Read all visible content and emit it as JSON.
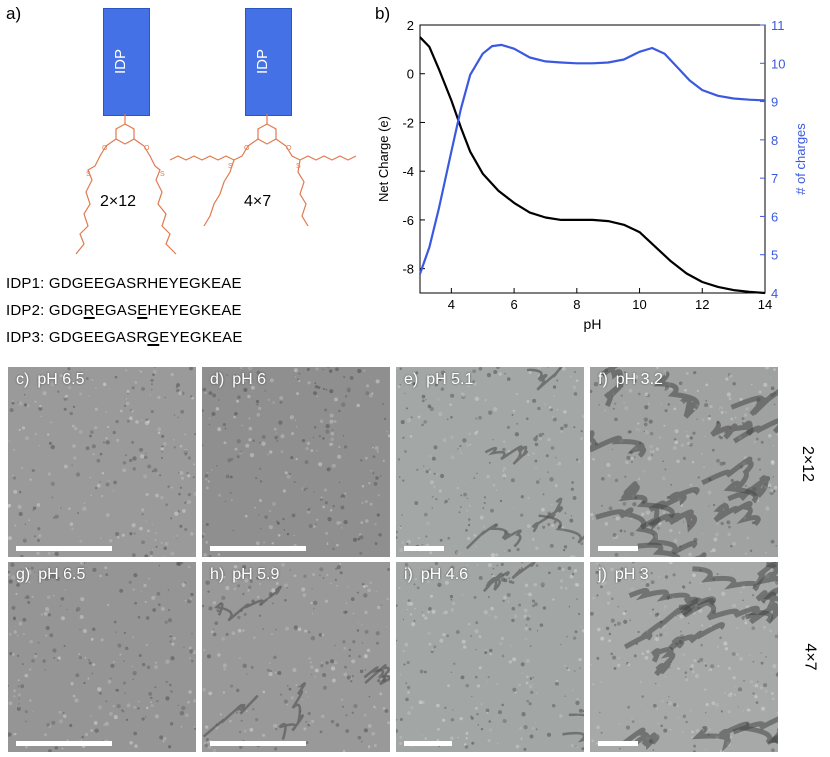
{
  "panel_a": {
    "letter": "a)",
    "molecules": [
      {
        "box_label": "IDP",
        "tail_label": "2×12"
      },
      {
        "box_label": "IDP",
        "tail_label": "4×7"
      }
    ],
    "sequences": [
      {
        "name": "IDP1:",
        "pre": "GDGEEGASRHEYEGKEAE",
        "u1": "",
        "mid": "",
        "u2": "",
        "post": ""
      },
      {
        "name": "IDP2:",
        "pre": "GDG",
        "u1": "R",
        "mid": "EGAS",
        "u2": "E",
        "post": "HEYEGKEAE"
      },
      {
        "name": "IDP3:",
        "pre": "GDGEEGASR",
        "u1": "G",
        "mid": "EYEGKEAE",
        "u2": "",
        "post": ""
      }
    ],
    "colors": {
      "idp_box": "#4472e6",
      "lipid": "#e07a4f"
    }
  },
  "panel_b": {
    "letter": "b)"
  },
  "chart_data": {
    "type": "line",
    "title": "",
    "xlabel": "pH",
    "ylabel_left": "Net Charge (e)",
    "ylabel_right": "# of charges",
    "xlim": [
      3,
      14
    ],
    "ylim_left": [
      -9,
      2
    ],
    "ylim_right": [
      4,
      11
    ],
    "xticks": [
      4,
      6,
      8,
      10,
      12,
      14
    ],
    "yticks_left": [
      -8,
      -6,
      -4,
      -2,
      0,
      2
    ],
    "yticks_right": [
      4,
      5,
      6,
      7,
      8,
      9,
      10,
      11
    ],
    "grid": false,
    "series": [
      {
        "axis": "left",
        "color": "#000000",
        "x": [
          3.0,
          3.3,
          3.6,
          4.0,
          4.3,
          4.6,
          5.0,
          5.5,
          6.0,
          6.5,
          7.0,
          7.5,
          8.0,
          8.5,
          9.0,
          9.5,
          10.0,
          10.5,
          11.0,
          11.5,
          12.0,
          12.5,
          13.0,
          13.5,
          14.0
        ],
        "y": [
          1.5,
          1.1,
          0.2,
          -1.1,
          -2.2,
          -3.2,
          -4.1,
          -4.8,
          -5.3,
          -5.7,
          -5.9,
          -6.0,
          -6.0,
          -6.0,
          -6.05,
          -6.2,
          -6.5,
          -7.1,
          -7.7,
          -8.2,
          -8.55,
          -8.75,
          -8.88,
          -8.95,
          -9.0
        ]
      },
      {
        "axis": "right",
        "color": "#3b59e0",
        "x": [
          3.0,
          3.3,
          3.6,
          4.0,
          4.3,
          4.6,
          5.0,
          5.3,
          5.6,
          6.0,
          6.5,
          7.0,
          7.5,
          8.0,
          8.5,
          9.0,
          9.5,
          10.0,
          10.4,
          10.8,
          11.2,
          11.6,
          12.0,
          12.5,
          13.0,
          13.5,
          14.0
        ],
        "y": [
          4.5,
          5.2,
          6.2,
          7.7,
          8.8,
          9.7,
          10.25,
          10.45,
          10.48,
          10.38,
          10.15,
          10.05,
          10.02,
          10.0,
          10.0,
          10.02,
          10.1,
          10.3,
          10.4,
          10.25,
          9.9,
          9.55,
          9.3,
          9.15,
          9.08,
          9.05,
          9.03
        ]
      }
    ]
  },
  "micrographs": {
    "row_labels": [
      "2×12",
      "4×7"
    ],
    "tiles": [
      {
        "letter": "c)",
        "label": "pH 6.5",
        "bg": "#9a9a9a"
      },
      {
        "letter": "d)",
        "label": "pH 6",
        "bg": "#8f8f8f"
      },
      {
        "letter": "e)",
        "label": "pH 5.1",
        "bg": "#a3a7a6"
      },
      {
        "letter": "f)",
        "label": "pH 3.2",
        "bg": "#9fa2a1"
      },
      {
        "letter": "g)",
        "label": "pH 6.5",
        "bg": "#959595"
      },
      {
        "letter": "h)",
        "label": "pH 5.9",
        "bg": "#999999"
      },
      {
        "letter": "i)",
        "label": "pH 4.6",
        "bg": "#a2a6a5"
      },
      {
        "letter": "j)",
        "label": "pH 3",
        "bg": "#a6a9a8"
      }
    ]
  }
}
